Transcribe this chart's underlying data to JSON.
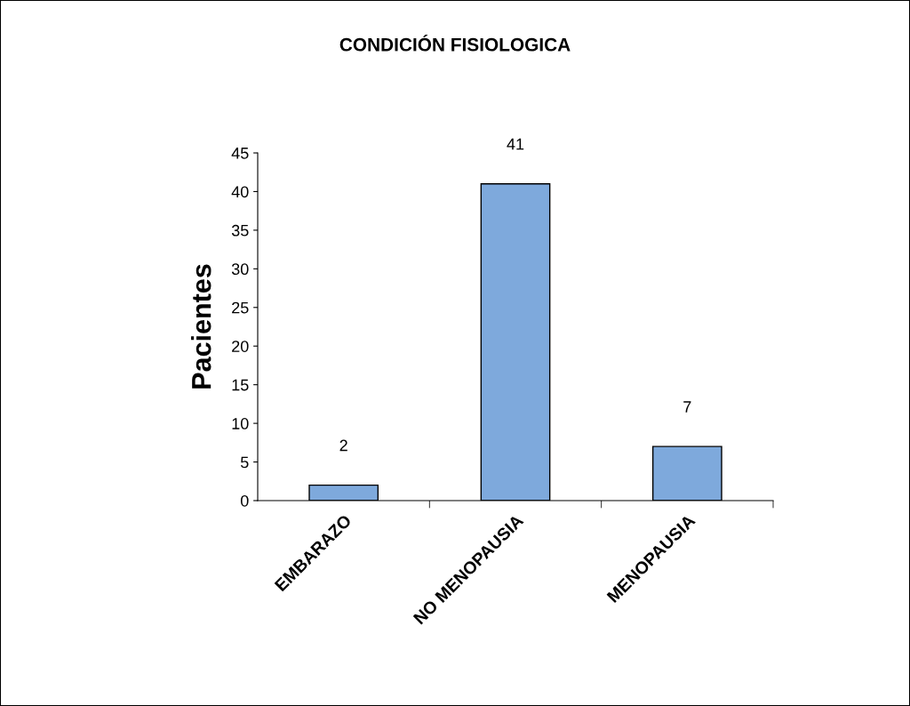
{
  "chart_data": {
    "type": "bar",
    "title": "CONDICIÓN FISIOLOGICA",
    "ylabel": "Pacientes",
    "categories": [
      "EMBARAZO",
      "NO MENOPAUSIA",
      "MENOPAUSIA"
    ],
    "values": [
      2,
      41,
      7
    ],
    "color": "#7ea9dc",
    "ylim": [
      0,
      45
    ],
    "yticks": [
      0,
      5,
      10,
      15,
      20,
      25,
      30,
      35,
      40,
      45
    ],
    "data_labels": true,
    "grid": false,
    "legend": false
  }
}
